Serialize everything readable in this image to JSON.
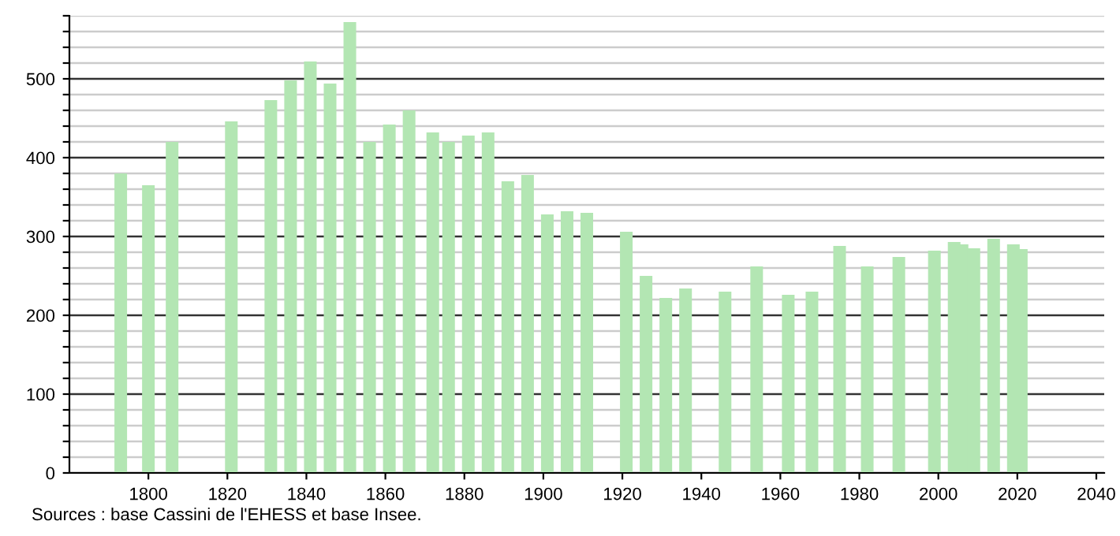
{
  "chart_data": {
    "type": "bar",
    "color": "#b3e6b3",
    "grid": "y",
    "x": [
      1793,
      1800,
      1806,
      1821,
      1831,
      1836,
      1841,
      1846,
      1851,
      1856,
      1861,
      1866,
      1872,
      1876,
      1881,
      1886,
      1891,
      1896,
      1901,
      1906,
      1911,
      1921,
      1926,
      1931,
      1936,
      1946,
      1954,
      1962,
      1968,
      1975,
      1982,
      1990,
      1999,
      2004,
      2006,
      2009,
      2014,
      2019,
      2021
    ],
    "values": [
      380,
      365,
      420,
      446,
      473,
      498,
      522,
      494,
      572,
      420,
      442,
      460,
      432,
      420,
      428,
      432,
      370,
      378,
      328,
      332,
      330,
      306,
      250,
      222,
      234,
      230,
      262,
      226,
      230,
      288,
      262,
      274,
      282,
      293,
      290,
      285,
      297,
      290,
      284
    ],
    "xlim": [
      1780,
      2042
    ],
    "xticks": [
      1800,
      1820,
      1840,
      1860,
      1880,
      1900,
      1920,
      1940,
      1960,
      1980,
      2000,
      2020,
      2040
    ],
    "ylim": [
      0,
      580
    ],
    "yticks": [
      0,
      {
        "value": 20,
        "label": null
      },
      {
        "value": 40,
        "label": null
      },
      {
        "value": 60,
        "label": null
      },
      {
        "value": 80,
        "label": null
      },
      100,
      {
        "value": 120,
        "label": null
      },
      {
        "value": 140,
        "label": null
      },
      {
        "value": 160,
        "label": null
      },
      {
        "value": 180,
        "label": null
      },
      200,
      {
        "value": 220,
        "label": null
      },
      {
        "value": 240,
        "label": null
      },
      {
        "value": 260,
        "label": null
      },
      {
        "value": 280,
        "label": null
      },
      300,
      {
        "value": 320,
        "label": null
      },
      {
        "value": 340,
        "label": null
      },
      {
        "value": 360,
        "label": null
      },
      {
        "value": 380,
        "label": null
      },
      400,
      {
        "value": 420,
        "label": null
      },
      {
        "value": 440,
        "label": null
      },
      {
        "value": 460,
        "label": null
      },
      {
        "value": 480,
        "label": null
      },
      500,
      {
        "value": 520,
        "label": null
      },
      {
        "value": 540,
        "label": null
      },
      {
        "value": 560,
        "label": null
      },
      {
        "value": 580,
        "label": null
      }
    ],
    "annotations": [
      "Sources : base Cassini de l'EHESS et base Insee."
    ]
  }
}
